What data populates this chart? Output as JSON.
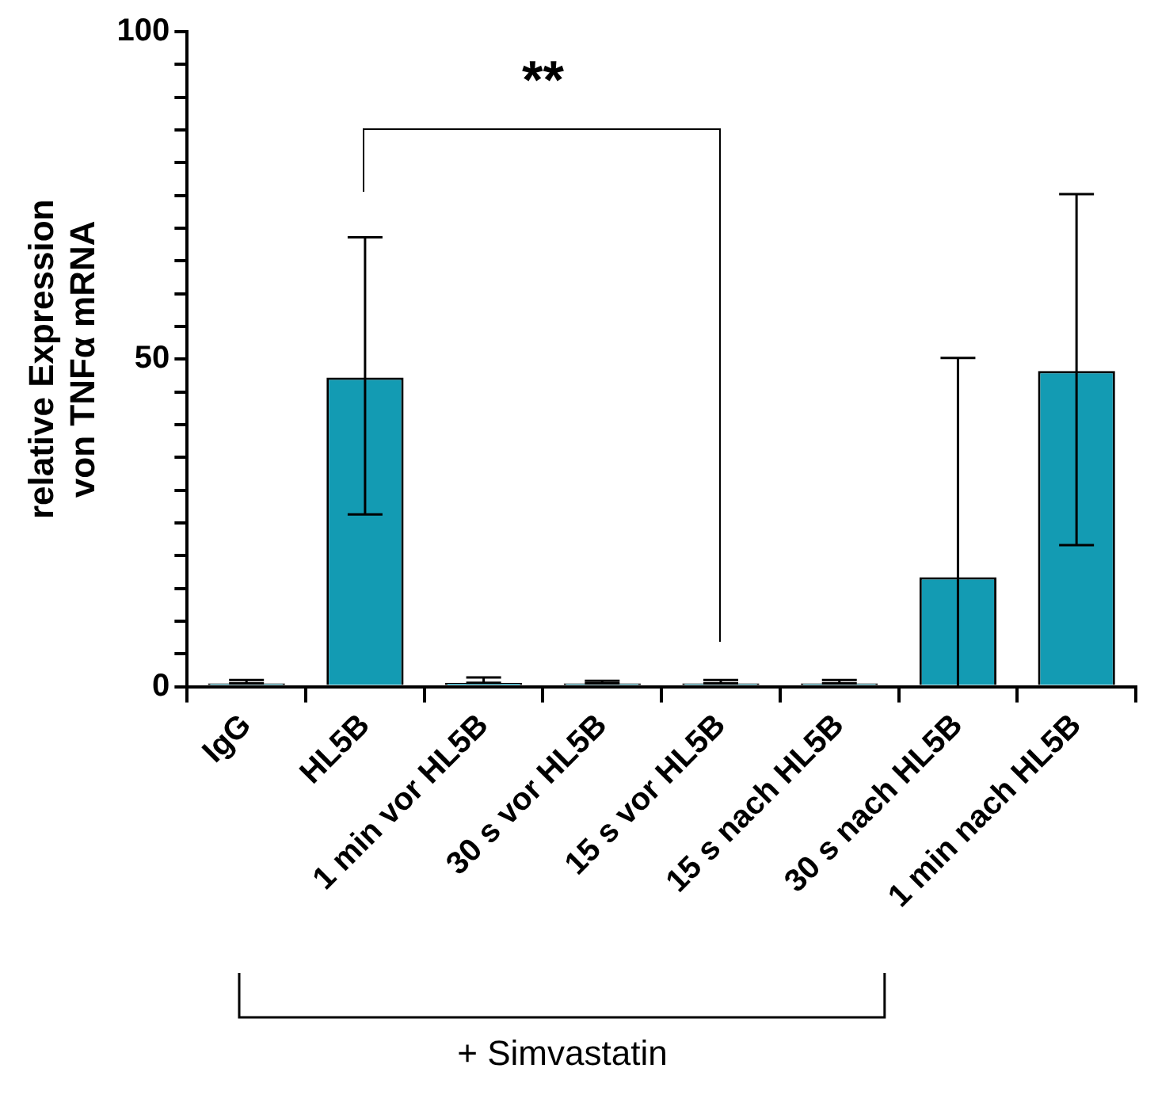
{
  "chart_data": {
    "type": "bar",
    "ylabel": "relative Expression\nvon TNFα mRNA",
    "categories": [
      "IgG",
      "HL5B",
      "1 min vor HL5B",
      "30 s vor HL5B",
      "15 s vor HL5B",
      "15 s nach HL5B",
      "30 s nach HL5B",
      "1 min nach HL5B"
    ],
    "values": [
      0.5,
      47.2,
      0.6,
      0.5,
      0.5,
      0.5,
      16.7,
      48.2
    ],
    "errors": [
      [
        0.5,
        1
      ],
      [
        26.3,
        68.6
      ],
      [
        0.6,
        1.4
      ],
      [
        0.5,
        0.9
      ],
      [
        0.5,
        1
      ],
      [
        0.5,
        1
      ],
      [
        0,
        50.2
      ],
      [
        21.6,
        75.2
      ]
    ],
    "color": "#139bb3",
    "ylim": [
      0,
      100
    ],
    "yticks": [
      0,
      {
        "value": 5,
        "label": null
      },
      {
        "value": 10,
        "label": null
      },
      {
        "value": 15,
        "label": null
      },
      {
        "value": 20,
        "label": null
      },
      {
        "value": 25,
        "label": null
      },
      {
        "value": 30,
        "label": null
      },
      {
        "value": 35,
        "label": null
      },
      {
        "value": 40,
        "label": null
      },
      {
        "value": 45,
        "label": null
      },
      50,
      {
        "value": 55,
        "label": null
      },
      {
        "value": 60,
        "label": null
      },
      {
        "value": 65,
        "label": null
      },
      {
        "value": 70,
        "label": null
      },
      {
        "value": 75,
        "label": null
      },
      {
        "value": 80,
        "label": null
      },
      {
        "value": 85,
        "label": null
      },
      {
        "value": 90,
        "label": null
      },
      {
        "value": 95,
        "label": null
      },
      100
    ],
    "annotations": [
      "**",
      "+ Simvastatin"
    ]
  }
}
